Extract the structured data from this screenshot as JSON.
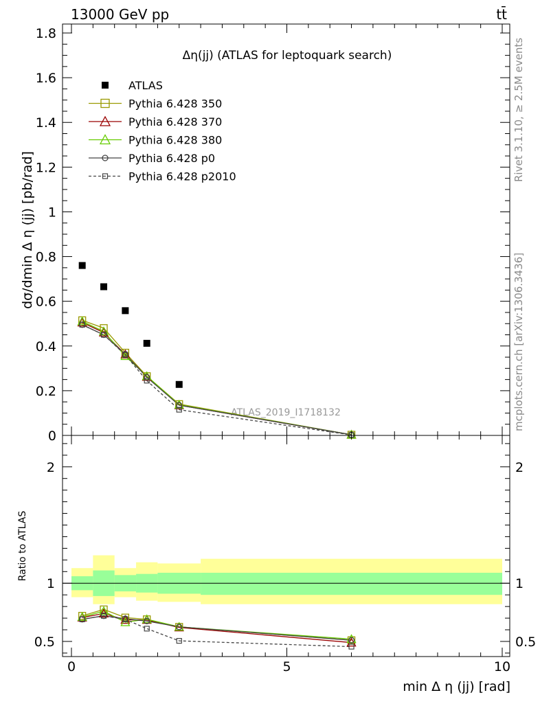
{
  "header": {
    "energy": "13000 GeV pp",
    "process": "tt̄",
    "plot_title": "Δη(jj) (ATLAS for leptoquark search)",
    "watermark": "ATLAS_2019_I1718132",
    "side_rivet": "Rivet 3.1.10, ≥ 2.5M events",
    "side_mcplots": "mcplots.cern.ch [arXiv:1306.3436]"
  },
  "chart_data": [
    {
      "type": "scatter",
      "panel": "main",
      "xlabel": "min Δ η (jj) [rad]",
      "ylabel": "dσ/dmin Δ η (jj) [pb/rad]",
      "xlim": [
        -0.3,
        10.1
      ],
      "ylim": [
        0,
        1.84
      ],
      "yticks": [
        {
          "v": 0,
          "label": "0"
        },
        {
          "v": 0.2,
          "label": "0.2"
        },
        {
          "v": 0.4,
          "label": "0.4"
        },
        {
          "v": 0.6,
          "label": "0.6"
        },
        {
          "v": 0.8,
          "label": "0.8"
        },
        {
          "v": 1.0,
          "label": "1"
        },
        {
          "v": 1.2,
          "label": "1.2"
        },
        {
          "v": 1.4,
          "label": "1.4"
        },
        {
          "v": 1.6,
          "label": "1.6"
        },
        {
          "v": 1.8,
          "label": "1.8"
        }
      ],
      "x": [
        0.25,
        0.75,
        1.25,
        1.75,
        2.5,
        6.5
      ],
      "series": [
        {
          "name": "ATLAS",
          "style": "data",
          "color": "#000000",
          "values": [
            0.76,
            0.665,
            0.558,
            0.412,
            0.228,
            null
          ]
        },
        {
          "name": "Pythia 6.428 350",
          "style": "open-square",
          "color": "#999900",
          "values": [
            0.515,
            0.48,
            0.37,
            0.265,
            0.14,
            0.003
          ]
        },
        {
          "name": "Pythia 6.428 370",
          "style": "open-triangle",
          "color": "#990000",
          "values": [
            0.505,
            0.46,
            0.362,
            0.262,
            0.135,
            0.003
          ]
        },
        {
          "name": "Pythia 6.428 380",
          "style": "open-triangle",
          "color": "#66cc00",
          "values": [
            0.51,
            0.465,
            0.355,
            0.265,
            0.137,
            0.003
          ]
        },
        {
          "name": "Pythia 6.428 p0",
          "style": "open-circle",
          "color": "#444444",
          "values": [
            0.495,
            0.45,
            0.363,
            0.26,
            0.135,
            0.003
          ]
        },
        {
          "name": "Pythia 6.428 p2010",
          "style": "open-small-square-dashed",
          "color": "#444444",
          "values": [
            0.495,
            0.45,
            0.36,
            0.245,
            0.115,
            0.002
          ]
        }
      ]
    },
    {
      "type": "scatter",
      "panel": "ratio",
      "xlabel": "min Δ η (jj) [rad]",
      "ylabel": "Ratio to ATLAS",
      "xlim": [
        -0.3,
        10.1
      ],
      "ylim": [
        0.37,
        2.27
      ],
      "xticks": [
        {
          "v": 0,
          "label": "0"
        },
        {
          "v": 5,
          "label": "5"
        },
        {
          "v": 10,
          "label": "10"
        }
      ],
      "yticks": [
        {
          "v": 0.5,
          "label": "0.5"
        },
        {
          "v": 1,
          "label": "1"
        },
        {
          "v": 2,
          "label": "2"
        }
      ],
      "bands": {
        "bin_edges": [
          0,
          0.5,
          1.0,
          1.5,
          2.0,
          3.0,
          10.0
        ],
        "inner": [
          [
            0.94,
            1.06
          ],
          [
            0.89,
            1.11
          ],
          [
            0.93,
            1.07
          ],
          [
            0.92,
            1.08
          ],
          [
            0.91,
            1.09
          ],
          [
            0.9,
            1.09
          ]
        ],
        "outer": [
          [
            0.88,
            1.13
          ],
          [
            0.82,
            1.24
          ],
          [
            0.88,
            1.13
          ],
          [
            0.85,
            1.18
          ],
          [
            0.84,
            1.17
          ],
          [
            0.82,
            1.21
          ]
        ]
      },
      "x": [
        0.25,
        0.75,
        1.25,
        1.75,
        2.5,
        6.5
      ],
      "series": [
        {
          "name": "Pythia 6.428 350",
          "style": "open-square",
          "color": "#999900",
          "values": [
            0.72,
            0.775,
            0.705,
            0.69,
            0.625,
            0.51
          ]
        },
        {
          "name": "Pythia 6.428 370",
          "style": "open-triangle",
          "color": "#990000",
          "values": [
            0.705,
            0.74,
            0.685,
            0.685,
            0.62,
            0.49
          ]
        },
        {
          "name": "Pythia 6.428 380",
          "style": "open-triangle",
          "color": "#66cc00",
          "values": [
            0.71,
            0.76,
            0.665,
            0.69,
            0.625,
            0.52
          ]
        },
        {
          "name": "Pythia 6.428 p0",
          "style": "open-circle",
          "color": "#444444",
          "values": [
            0.69,
            0.72,
            0.695,
            0.675,
            0.625,
            0.51
          ]
        },
        {
          "name": "Pythia 6.428 p2010",
          "style": "open-small-square-dashed",
          "color": "#444444",
          "values": [
            0.69,
            0.72,
            0.69,
            0.61,
            0.505,
            0.455
          ]
        }
      ]
    }
  ]
}
